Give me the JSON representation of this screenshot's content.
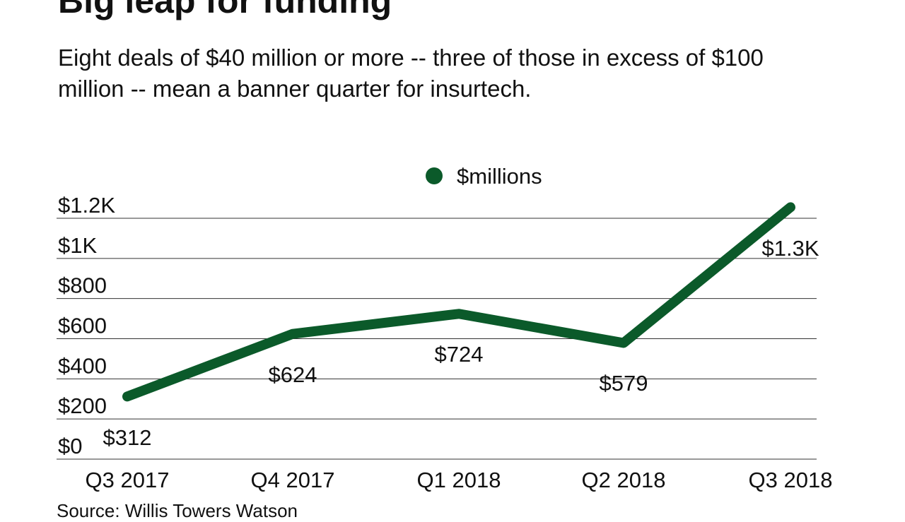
{
  "title": "Big leap for funding",
  "subtitle": "Eight deals of $40 million or more -- three of those in excess of $100 million -- mean a banner quarter for insurtech.",
  "source": "Source: Willis Towers Watson",
  "colors": {
    "series": "#0b5a2a",
    "grid": "#333333"
  },
  "chart_data": {
    "type": "line",
    "title": "Big leap for funding",
    "legend_position": "top-center",
    "categories": [
      "Q3 2017",
      "Q4 2017",
      "Q1 2018",
      "Q2 2018",
      "Q3 2018"
    ],
    "series": [
      {
        "name": "$millions",
        "values": [
          312,
          624,
          724,
          579,
          1255
        ],
        "data_labels": [
          "$312",
          "$624",
          "$724",
          "$579",
          "$1.3K"
        ]
      }
    ],
    "yticks": [
      0,
      200,
      400,
      600,
      800,
      1000,
      1200
    ],
    "ytick_labels": [
      "$0",
      "$200",
      "$400",
      "$600",
      "$800",
      "$1K",
      "$1.2K"
    ],
    "ylim": [
      0,
      1200
    ],
    "grid": true
  }
}
